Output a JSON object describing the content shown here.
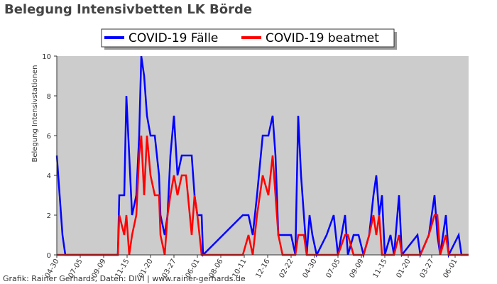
{
  "chart_data": {
    "type": "line",
    "title": "Belegung Intensivbetten LK Börde",
    "y_label": "Belegung Intensivstationen",
    "footer": "Grafik: Rainer Gerhards, Daten: DIVI | www.rainer-gerhards.de",
    "legend": "top",
    "background": "#cccccc",
    "x": [
      0,
      16,
      24,
      172,
      176,
      190,
      196,
      204,
      212,
      224,
      232,
      238,
      246,
      254,
      264,
      276,
      288,
      292,
      304,
      312,
      320,
      330,
      340,
      352,
      364,
      380,
      388,
      396,
      408,
      412,
      524,
      540,
      552,
      564,
      580,
      596,
      608,
      616,
      624,
      636,
      660,
      672,
      680,
      688,
      696,
      704,
      712,
      720,
      732,
      760,
      780,
      792,
      812,
      820,
      836,
      850,
      864,
      880,
      892,
      900,
      908,
      916,
      924,
      940,
      950,
      964,
      972,
      1016,
      1024,
      1048,
      1064,
      1072,
      1080,
      1096,
      1104,
      1132,
      1140,
      1160
    ],
    "series": [
      {
        "name": "COVID-19 Fälle",
        "color": "#0000ff",
        "values": [
          5,
          1,
          0,
          0,
          3,
          3,
          8,
          5,
          2,
          3,
          6,
          10,
          9,
          7,
          6,
          6,
          4,
          2,
          1,
          2,
          5,
          7,
          4,
          5,
          5,
          5,
          3,
          2,
          2,
          0,
          2,
          2,
          1,
          3,
          6,
          6,
          7,
          5,
          1,
          1,
          1,
          0,
          7,
          4,
          2,
          0,
          2,
          1,
          0,
          1,
          2,
          0,
          2,
          0,
          1,
          1,
          0,
          1,
          3,
          4,
          2,
          3,
          0,
          1,
          0,
          3,
          0,
          1,
          0,
          1,
          3,
          1,
          0,
          2,
          0,
          1,
          0,
          0
        ]
      },
      {
        "name": "COVID-19 beatmet",
        "color": "#ff0000",
        "values": [
          0,
          0,
          0,
          0,
          2,
          1,
          2,
          0,
          1,
          2,
          5,
          6,
          3,
          6,
          4,
          3,
          3,
          1,
          0,
          2,
          3,
          4,
          3,
          4,
          4,
          1,
          3,
          2,
          0,
          0,
          0,
          1,
          0,
          2,
          4,
          3,
          5,
          3,
          1,
          0,
          0,
          0,
          1,
          1,
          1,
          0,
          0,
          0,
          0,
          0,
          0,
          0,
          1,
          1,
          0,
          0,
          0,
          1,
          2,
          1,
          2,
          0,
          0,
          0,
          0,
          1,
          0,
          0,
          0,
          1,
          2,
          2,
          0,
          1,
          0,
          0,
          0,
          0
        ]
      }
    ],
    "xlim": [
      0,
      1160
    ],
    "xticks": [
      {
        "value": 0,
        "label": "04-30"
      },
      {
        "value": 66,
        "label": "07-05"
      },
      {
        "value": 132,
        "label": "09-09"
      },
      {
        "value": 198,
        "label": "11-15"
      },
      {
        "value": 264,
        "label": "01-20"
      },
      {
        "value": 330,
        "label": "03-27"
      },
      {
        "value": 396,
        "label": "06-01"
      },
      {
        "value": 462,
        "label": "08-06"
      },
      {
        "value": 528,
        "label": "10-11"
      },
      {
        "value": 594,
        "label": "12-16"
      },
      {
        "value": 660,
        "label": "02-22"
      },
      {
        "value": 726,
        "label": "04-30"
      },
      {
        "value": 792,
        "label": "07-05"
      },
      {
        "value": 858,
        "label": "09-09"
      },
      {
        "value": 924,
        "label": "11-15"
      },
      {
        "value": 990,
        "label": "01-20"
      },
      {
        "value": 1056,
        "label": "03-27"
      },
      {
        "value": 1122,
        "label": "06-01"
      }
    ],
    "ylim": [
      0,
      10
    ],
    "yticks": [
      0,
      2,
      4,
      6,
      8,
      10
    ]
  }
}
